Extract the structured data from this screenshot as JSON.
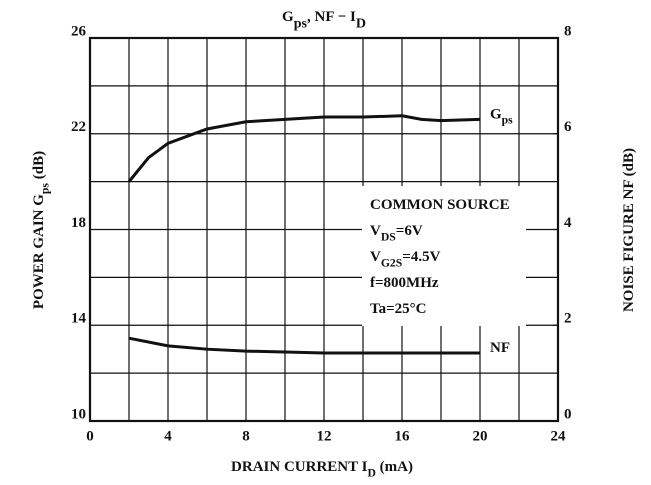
{
  "chart_data": {
    "type": "line",
    "title": [
      {
        "text": "G"
      },
      {
        "text": "ps",
        "sub": true
      },
      {
        "text": ", NF − I"
      },
      {
        "text": "D",
        "sub": true
      }
    ],
    "x_label": [
      {
        "text": "DRAIN CURRENT  I"
      },
      {
        "text": "D",
        "sub": true
      },
      {
        "text": "  (mA)"
      }
    ],
    "y_label": [
      {
        "text": "POWER GAIN  G"
      },
      {
        "text": "ps",
        "sub": true
      },
      {
        "text": "  (dB)"
      }
    ],
    "y2_label": [
      {
        "text": "NOISE FIGURE  NF  (dB)"
      }
    ],
    "xlim": [
      0,
      24
    ],
    "xticks": [
      0,
      4,
      8,
      12,
      16,
      20,
      24
    ],
    "xminor": [
      2,
      6,
      10,
      14,
      18,
      22
    ],
    "ylim": [
      10,
      26
    ],
    "yticks": [
      10,
      14,
      18,
      22,
      26
    ],
    "yminor": [
      12,
      16,
      20,
      24
    ],
    "y2lim": [
      0,
      8
    ],
    "y2ticks": [
      0,
      2,
      4,
      6,
      8
    ],
    "grid": true,
    "series": [
      {
        "name": [
          {
            "text": "G"
          },
          {
            "text": "ps",
            "sub": true
          }
        ],
        "color": "#111111",
        "x": [
          2,
          3,
          4,
          6,
          8,
          10,
          12,
          14,
          16,
          17,
          18,
          20
        ],
        "values": [
          20.0,
          21.0,
          21.6,
          22.2,
          22.5,
          22.6,
          22.7,
          22.7,
          22.75,
          22.6,
          22.55,
          22.6
        ]
      },
      {
        "name": [
          {
            "text": "NF"
          }
        ],
        "color": "#111111",
        "axis": "y2",
        "x": [
          2,
          4,
          6,
          8,
          10,
          12,
          14,
          16,
          18,
          20
        ],
        "values": [
          1.73,
          1.57,
          1.5,
          1.46,
          1.44,
          1.42,
          1.42,
          1.42,
          1.42,
          1.42
        ]
      }
    ],
    "annotation": [
      [
        {
          "text": "COMMON SOURCE"
        }
      ],
      [
        {
          "text": "V"
        },
        {
          "text": "DS",
          "sub": true
        },
        {
          "text": "=6V"
        }
      ],
      [
        {
          "text": "V"
        },
        {
          "text": "G2S",
          "sub": true
        },
        {
          "text": "=4.5V"
        }
      ],
      [
        {
          "text": "f=800MHz"
        }
      ],
      [
        {
          "text": "Ta=25°C"
        }
      ]
    ]
  }
}
